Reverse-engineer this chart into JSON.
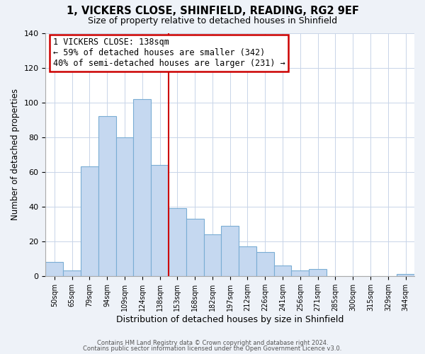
{
  "title1": "1, VICKERS CLOSE, SHINFIELD, READING, RG2 9EF",
  "title2": "Size of property relative to detached houses in Shinfield",
  "xlabel": "Distribution of detached houses by size in Shinfield",
  "ylabel": "Number of detached properties",
  "bin_labels": [
    "50sqm",
    "65sqm",
    "79sqm",
    "94sqm",
    "109sqm",
    "124sqm",
    "138sqm",
    "153sqm",
    "168sqm",
    "182sqm",
    "197sqm",
    "212sqm",
    "226sqm",
    "241sqm",
    "256sqm",
    "271sqm",
    "285sqm",
    "300sqm",
    "315sqm",
    "329sqm",
    "344sqm"
  ],
  "bar_heights": [
    8,
    3,
    63,
    92,
    80,
    102,
    64,
    39,
    33,
    24,
    29,
    17,
    14,
    6,
    3,
    4,
    0,
    0,
    0,
    0,
    1
  ],
  "bar_color": "#c5d8f0",
  "bar_edge_color": "#7aadd4",
  "vline_index": 7,
  "vline_color": "#cc0000",
  "annotation_title": "1 VICKERS CLOSE: 138sqm",
  "annotation_line1": "← 59% of detached houses are smaller (342)",
  "annotation_line2": "40% of semi-detached houses are larger (231) →",
  "annotation_box_color": "#cc0000",
  "ylim": [
    0,
    140
  ],
  "footnote1": "Contains HM Land Registry data © Crown copyright and database right 2024.",
  "footnote2": "Contains public sector information licensed under the Open Government Licence v3.0.",
  "background_color": "#eef2f8",
  "plot_background": "#ffffff"
}
